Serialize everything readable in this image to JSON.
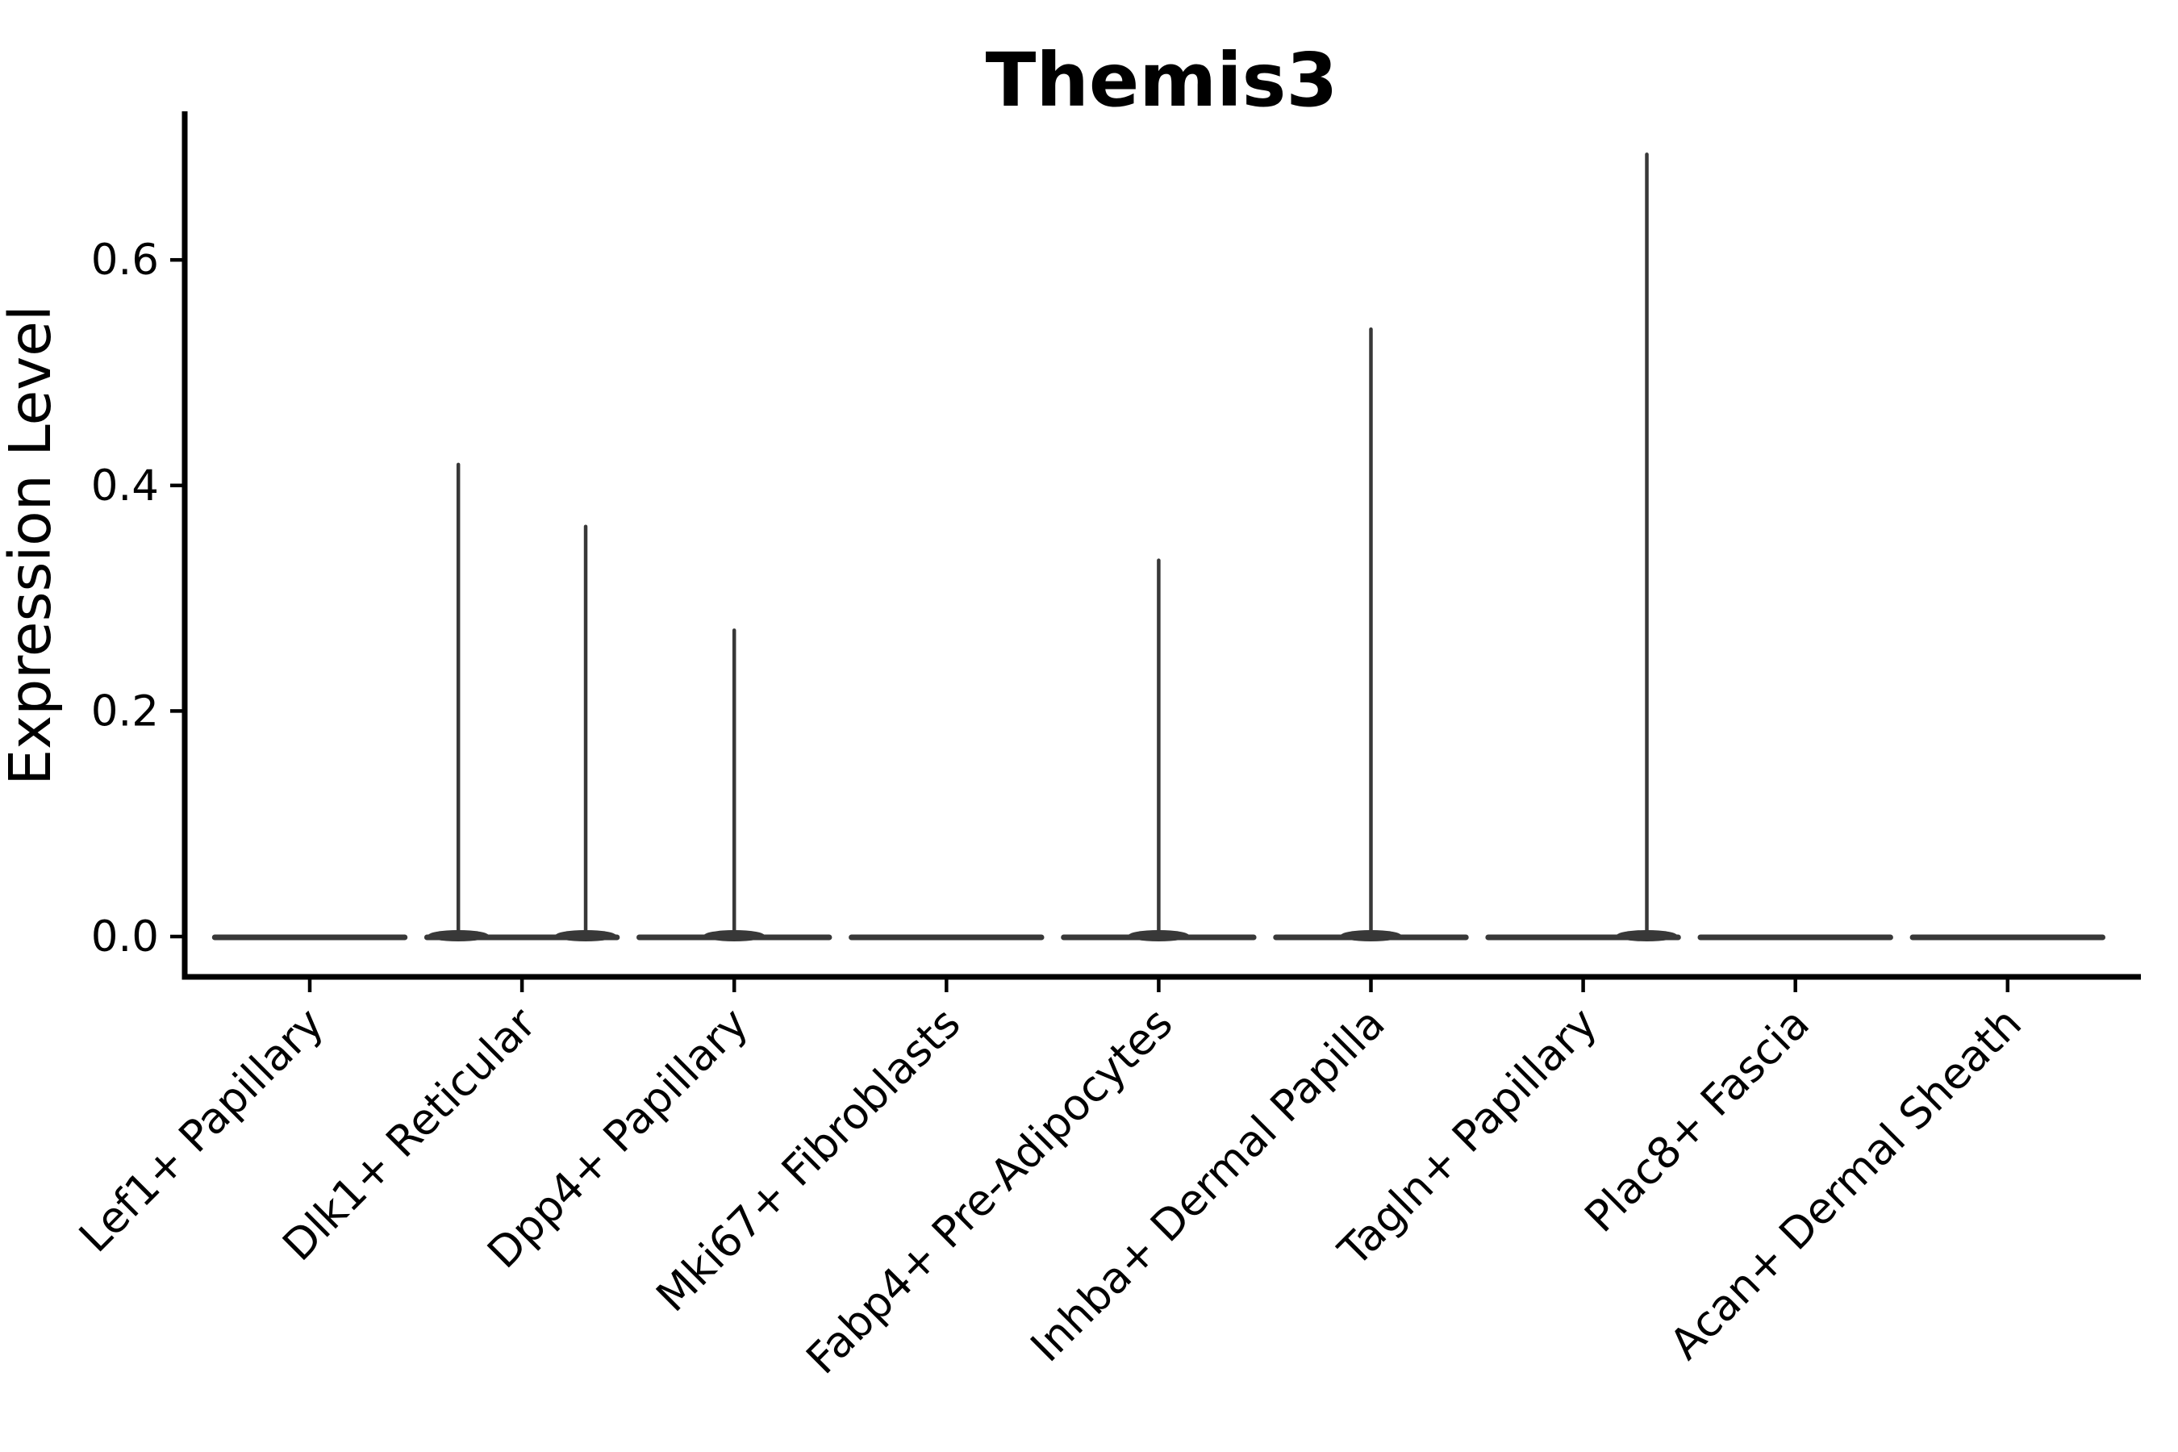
{
  "title": "Themis3",
  "y_axis": {
    "label": "Expression Level",
    "tick_labels": [
      "0.0",
      "0.2",
      "0.4",
      "0.6"
    ]
  },
  "chart_data": {
    "type": "violin",
    "title": "Themis3",
    "xlabel": "",
    "ylabel": "Expression Level",
    "ylim": [
      -0.036,
      0.732
    ],
    "yticks": [
      0.0,
      0.2,
      0.4,
      0.6
    ],
    "ytick_labels": [
      "0.0",
      "0.2",
      "0.4",
      "0.6"
    ],
    "grid": false,
    "legend": "none",
    "categories": [
      "Lef1+ Papillary",
      "Dlk1+ Reticular",
      "Dpp4+ Papillary",
      "Mki67+ Fibroblasts",
      "Fabp4+ Pre-Adipocytes",
      "Inhba+ Dermal Papilla",
      "Tagln+ Papillary",
      "Plac8+ Fascia",
      "Acan+ Dermal Sheath"
    ],
    "violins": [
      {
        "category": "Lef1+ Papillary",
        "base_at_zero": true,
        "spikes": []
      },
      {
        "category": "Dlk1+ Reticular",
        "base_at_zero": true,
        "spikes": [
          {
            "offset": -0.3,
            "max": 0.42
          },
          {
            "offset": 0.3,
            "max": 0.365
          }
        ]
      },
      {
        "category": "Dpp4+ Papillary",
        "base_at_zero": true,
        "spikes": [
          {
            "offset": 0.0,
            "max": 0.273
          }
        ]
      },
      {
        "category": "Mki67+ Fibroblasts",
        "base_at_zero": true,
        "spikes": []
      },
      {
        "category": "Fabp4+ Pre-Adipocytes",
        "base_at_zero": true,
        "spikes": [
          {
            "offset": 0.0,
            "max": 0.335
          }
        ]
      },
      {
        "category": "Inhba+ Dermal Papilla",
        "base_at_zero": true,
        "spikes": [
          {
            "offset": 0.0,
            "max": 0.54
          }
        ]
      },
      {
        "category": "Tagln+ Papillary",
        "base_at_zero": true,
        "spikes": [
          {
            "offset": 0.3,
            "max": 0.695
          }
        ]
      },
      {
        "category": "Plac8+ Fascia",
        "base_at_zero": true,
        "spikes": []
      },
      {
        "category": "Acan+ Dermal Sheath",
        "base_at_zero": true,
        "spikes": []
      }
    ],
    "style": {
      "violin_color": "#383838",
      "axis_color": "#000000",
      "text_color": "#000000",
      "background": "#ffffff",
      "base_halfwidth_units": 0.455,
      "x_label_rotation_deg": 45
    }
  }
}
